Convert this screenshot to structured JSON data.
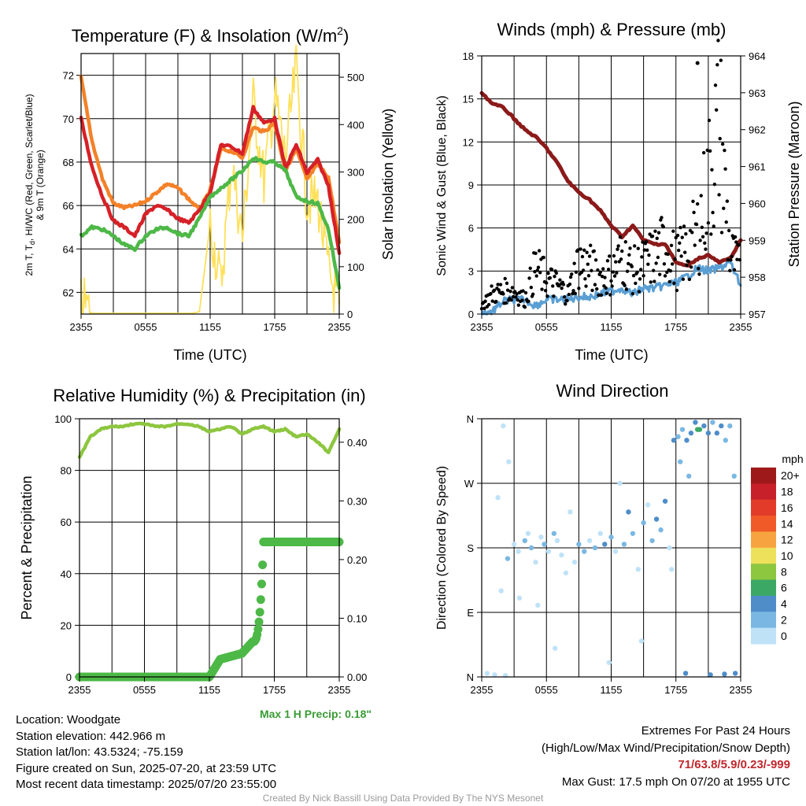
{
  "chart_data": [
    {
      "type": "line",
      "title": "Temperature (F) & Insolation (W/m",
      "title_superscript": "2",
      "title_close": ")",
      "xlabel": "Time (UTC)",
      "ylabel_left": [
        "2m T, T",
        "d",
        ", HI/WC (Red, Green, Scarlet/Blue)",
        "& 9m T (Orange)"
      ],
      "ylabel_right": "Solar Insolation (Yellow)",
      "x_ticks": [
        "2355",
        "0555",
        "1155",
        "1755",
        "2355"
      ],
      "ylim_left": [
        61,
        73
      ],
      "yticks_left": [
        62,
        64,
        66,
        68,
        70,
        72
      ],
      "ylim_right": [
        0,
        550
      ],
      "yticks_right": [
        0,
        100,
        200,
        300,
        400,
        500
      ],
      "x_hours_since_start": [
        0,
        1,
        2,
        3,
        4,
        5,
        6,
        7,
        8,
        9,
        10,
        11,
        12,
        13,
        14,
        15,
        16,
        17,
        18,
        19,
        20,
        21,
        22,
        23,
        24
      ],
      "series": [
        {
          "color": "#f48128",
          "axis": "left",
          "values": [
            71.9,
            69.0,
            67.2,
            66.1,
            65.9,
            66.0,
            66.2,
            66.6,
            67.0,
            66.8,
            66.3,
            65.8,
            66.7,
            68.6,
            68.5,
            68.2,
            69.6,
            69.4,
            69.8,
            67.6,
            68.6,
            67.2,
            67.9,
            67.3,
            64.3
          ]
        },
        {
          "color": "#d62027",
          "axis": "left",
          "values": [
            70.0,
            67.8,
            66.4,
            65.3,
            65.0,
            64.6,
            65.6,
            66.0,
            65.8,
            65.4,
            65.2,
            65.8,
            66.6,
            68.8,
            68.7,
            68.4,
            70.5,
            69.8,
            70.0,
            67.7,
            68.8,
            67.5,
            68.1,
            66.9,
            63.8
          ]
        },
        {
          "color": "#4db847",
          "axis": "left",
          "values": [
            64.6,
            65.0,
            64.9,
            64.6,
            64.2,
            64.0,
            64.6,
            64.9,
            65.0,
            64.7,
            64.6,
            65.4,
            66.4,
            66.8,
            67.2,
            67.6,
            68.2,
            68.0,
            68.0,
            67.6,
            66.4,
            66.2,
            66.1,
            64.9,
            62.2
          ]
        },
        {
          "color": "#ffe05a",
          "axis": "right",
          "values": [
            30,
            0,
            0,
            0,
            0,
            0,
            0,
            0,
            0,
            0,
            0,
            5,
            190,
            60,
            320,
            160,
            450,
            280,
            460,
            330,
            520,
            240,
            240,
            90,
            20
          ]
        }
      ]
    },
    {
      "type": "line",
      "title": "Winds (mph) & Pressure (mb)",
      "xlabel": "Time (UTC)",
      "ylabel_left": "Sonic Wind & Gust (Blue, Black)",
      "ylabel_right": "Station Pressure (Maroon)",
      "x_ticks": [
        "2355",
        "0555",
        "1155",
        "1755",
        "2355"
      ],
      "ylim_left": [
        0,
        18
      ],
      "yticks_left": [
        0,
        3,
        6,
        9,
        12,
        15,
        18
      ],
      "ylim_right": [
        957,
        964
      ],
      "yticks_right": [
        957,
        958,
        959,
        960,
        961,
        962,
        963,
        964
      ],
      "x_hours_since_start": [
        0,
        1,
        2,
        3,
        4,
        5,
        6,
        7,
        8,
        9,
        10,
        11,
        12,
        13,
        14,
        15,
        16,
        17,
        18,
        19,
        20,
        21,
        22,
        23,
        24
      ],
      "series": [
        {
          "color": "#5a9fd4",
          "axis": "left",
          "values": [
            0.0,
            0.2,
            0.9,
            1.0,
            1.0,
            0.6,
            1.0,
            1.0,
            1.0,
            1.2,
            1.2,
            1.4,
            1.6,
            1.8,
            1.4,
            1.8,
            1.8,
            2.0,
            2.2,
            2.6,
            3.2,
            3.0,
            3.2,
            3.6,
            2.0
          ]
        },
        {
          "color": "#8b1a1a",
          "axis": "right",
          "values": [
            963.0,
            962.7,
            962.6,
            962.3,
            962.0,
            961.8,
            961.5,
            961.1,
            960.6,
            960.3,
            960.1,
            959.8,
            959.4,
            959.1,
            959.4,
            959.0,
            958.9,
            958.9,
            958.4,
            958.3,
            958.5,
            958.6,
            958.4,
            958.5,
            959.0
          ]
        }
      ],
      "gusts_series": {
        "color": "#000000",
        "axis": "left",
        "values": [
          0.6,
          1.4,
          1.6,
          1.6,
          1.0,
          3.2,
          2.4,
          2.0,
          1.4,
          3.6,
          3.2,
          2.6,
          2.8,
          4.0,
          3.0,
          3.4,
          4.0,
          4.8,
          3.6,
          4.4,
          5.6,
          9.0,
          13.6,
          4.2,
          3.0
        ]
      },
      "max_gust": {
        "x": 20,
        "y": 17.5
      }
    },
    {
      "type": "line",
      "title": "Relative Humidity (%) & Precipitation (in)",
      "ylabel": "Percent & Precipitation",
      "x_ticks": [
        "2355",
        "0555",
        "1155",
        "1755",
        "2355"
      ],
      "ylim_left": [
        0,
        100
      ],
      "yticks_left": [
        0,
        20,
        40,
        60,
        80,
        100
      ],
      "ylim_right": [
        0,
        0.44
      ],
      "yticks_right": [
        "0.00",
        "0.10",
        "0.20",
        "0.30",
        "0.40"
      ],
      "x_hours_since_start": [
        0,
        1,
        2,
        3,
        4,
        5,
        6,
        7,
        8,
        9,
        10,
        11,
        12,
        13,
        14,
        15,
        16,
        17,
        18,
        19,
        20,
        21,
        22,
        23,
        24
      ],
      "series": [
        {
          "name": "rh",
          "color": "#8dc63f",
          "axis": "left",
          "values": [
            85,
            93,
            96,
            97,
            97,
            98,
            98,
            97,
            97,
            98,
            98,
            97,
            95,
            96,
            97,
            94,
            96,
            97,
            95,
            96,
            93,
            94,
            91,
            87,
            96
          ]
        },
        {
          "name": "precip",
          "color": "#4db847",
          "axis": "right",
          "values": [
            0,
            0,
            0,
            0,
            0,
            0,
            0,
            0,
            0,
            0,
            0,
            0,
            0,
            0.03,
            0.035,
            0.04,
            0.06,
            0.23,
            0.23,
            0.23,
            0.23,
            0.23,
            0.23,
            0.23,
            0.23
          ]
        }
      ],
      "annotation": "Max 1 H Precip: 0.18\""
    },
    {
      "type": "scatter",
      "title": "Wind Direction",
      "ylabel": "Direction (Colored By Speed)",
      "x_ticks": [
        "2355",
        "0555",
        "1155",
        "1755",
        "2355"
      ],
      "y_ticks": [
        "N",
        "E",
        "S",
        "W",
        "N"
      ],
      "y_tick_degrees": [
        0,
        90,
        180,
        270,
        360
      ],
      "points": [
        {
          "t": 0.5,
          "deg": 5,
          "c": 0
        },
        {
          "t": 1.2,
          "deg": 3,
          "c": 0
        },
        {
          "t": 2.2,
          "deg": 2,
          "c": 0
        },
        {
          "t": 1.5,
          "deg": 250,
          "c": 0
        },
        {
          "t": 2.0,
          "deg": 350,
          "c": 0
        },
        {
          "t": 2.5,
          "deg": 300,
          "c": 0
        },
        {
          "t": 1.8,
          "deg": 120,
          "c": 0
        },
        {
          "t": 2.4,
          "deg": 165,
          "c": 1
        },
        {
          "t": 3.0,
          "deg": 185,
          "c": 0
        },
        {
          "t": 3.4,
          "deg": 175,
          "c": 0
        },
        {
          "t": 4.0,
          "deg": 190,
          "c": 1
        },
        {
          "t": 4.3,
          "deg": 200,
          "c": 0
        },
        {
          "t": 4.6,
          "deg": 180,
          "c": 1
        },
        {
          "t": 5.0,
          "deg": 160,
          "c": 0
        },
        {
          "t": 5.5,
          "deg": 195,
          "c": 0
        },
        {
          "t": 5.8,
          "deg": 185,
          "c": 1
        },
        {
          "t": 6.2,
          "deg": 175,
          "c": 0
        },
        {
          "t": 6.7,
          "deg": 200,
          "c": 1
        },
        {
          "t": 7.0,
          "deg": 190,
          "c": 0
        },
        {
          "t": 7.4,
          "deg": 170,
          "c": 0
        },
        {
          "t": 7.8,
          "deg": 145,
          "c": 0
        },
        {
          "t": 8.2,
          "deg": 230,
          "c": 0
        },
        {
          "t": 8.6,
          "deg": 160,
          "c": 0
        },
        {
          "t": 9.0,
          "deg": 185,
          "c": 1
        },
        {
          "t": 3.5,
          "deg": 110,
          "c": 0
        },
        {
          "t": 5.2,
          "deg": 100,
          "c": 0
        },
        {
          "t": 6.8,
          "deg": 40,
          "c": 0
        },
        {
          "t": 9.5,
          "deg": 175,
          "c": 1
        },
        {
          "t": 10.0,
          "deg": 190,
          "c": 0
        },
        {
          "t": 10.5,
          "deg": 180,
          "c": 1
        },
        {
          "t": 11.0,
          "deg": 200,
          "c": 0
        },
        {
          "t": 11.4,
          "deg": 185,
          "c": 2
        },
        {
          "t": 12.0,
          "deg": 195,
          "c": 1
        },
        {
          "t": 12.4,
          "deg": 175,
          "c": 0
        },
        {
          "t": 12.8,
          "deg": 270,
          "c": 0
        },
        {
          "t": 13.2,
          "deg": 185,
          "c": 1
        },
        {
          "t": 13.6,
          "deg": 230,
          "c": 2
        },
        {
          "t": 14.0,
          "deg": 200,
          "c": 1
        },
        {
          "t": 14.5,
          "deg": 150,
          "c": 0
        },
        {
          "t": 15.0,
          "deg": 215,
          "c": 1
        },
        {
          "t": 15.4,
          "deg": 240,
          "c": 0
        },
        {
          "t": 15.8,
          "deg": 190,
          "c": 1
        },
        {
          "t": 16.2,
          "deg": 220,
          "c": 2
        },
        {
          "t": 16.6,
          "deg": 205,
          "c": 1
        },
        {
          "t": 17.0,
          "deg": 245,
          "c": 2
        },
        {
          "t": 17.4,
          "deg": 180,
          "c": 0
        },
        {
          "t": 11.8,
          "deg": 20,
          "c": 0
        },
        {
          "t": 14.8,
          "deg": 50,
          "c": 0
        },
        {
          "t": 17.8,
          "deg": 330,
          "c": 2
        },
        {
          "t": 18.2,
          "deg": 335,
          "c": 1
        },
        {
          "t": 18.6,
          "deg": 345,
          "c": 1
        },
        {
          "t": 19.0,
          "deg": 330,
          "c": 2
        },
        {
          "t": 19.4,
          "deg": 340,
          "c": 2
        },
        {
          "t": 19.8,
          "deg": 355,
          "c": 2
        },
        {
          "t": 20.2,
          "deg": 345,
          "c": 3
        },
        {
          "t": 20.6,
          "deg": 350,
          "c": 2
        },
        {
          "t": 21.0,
          "deg": 340,
          "c": 2
        },
        {
          "t": 21.4,
          "deg": 355,
          "c": 1
        },
        {
          "t": 21.8,
          "deg": 340,
          "c": 2
        },
        {
          "t": 22.2,
          "deg": 350,
          "c": 2
        },
        {
          "t": 22.6,
          "deg": 330,
          "c": 1
        },
        {
          "t": 23.0,
          "deg": 350,
          "c": 1
        },
        {
          "t": 23.4,
          "deg": 280,
          "c": 1
        },
        {
          "t": 18.4,
          "deg": 300,
          "c": 1
        },
        {
          "t": 19.2,
          "deg": 280,
          "c": 1
        },
        {
          "t": 17.6,
          "deg": 150,
          "c": 0
        },
        {
          "t": 18.9,
          "deg": 5,
          "c": 2
        },
        {
          "t": 21.2,
          "deg": 3,
          "c": 2
        },
        {
          "t": 22.5,
          "deg": 4,
          "c": 2
        },
        {
          "t": 23.5,
          "deg": 5,
          "c": 2
        },
        {
          "t": 20.0,
          "deg": 345,
          "c": 3
        }
      ],
      "colorbar": {
        "title": "mph",
        "labels": [
          "20+",
          "18",
          "16",
          "14",
          "12",
          "10",
          "8",
          "6",
          "4",
          "2",
          "0"
        ],
        "colors": [
          "#9e1a1a",
          "#c8202a",
          "#e23b2a",
          "#f05a28",
          "#f7a440",
          "#ede05a",
          "#8dc63f",
          "#3ca865",
          "#4f8dc9",
          "#7ab8e3",
          "#bfe2f7"
        ]
      }
    }
  ],
  "info": {
    "location": "Location: Woodgate",
    "elevation": "Station elevation: 442.966 m",
    "latlon": "Station lat/lon: 43.5324; -75.159",
    "created": "Figure created on Sun, 2025-07-20, at 23:59 UTC",
    "recent": "Most recent data timestamp: 2025/07/20 23:55:00"
  },
  "extremes": {
    "title": "Extremes For Past 24 Hours",
    "subtitle": "(High/Low/Max Wind/Precipitation/Snow Depth)",
    "values": "71/63.8/5.9/0.23/-999",
    "max_gust": "Max Gust: 17.5 mph On 07/20 at 1955 UTC"
  },
  "credit": "Created By Nick Bassill Using Data Provided By The NYS Mesonet"
}
